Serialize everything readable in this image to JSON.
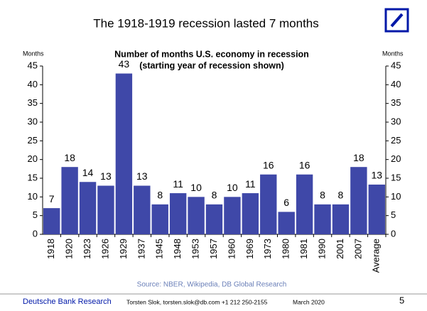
{
  "chart_data": {
    "type": "bar",
    "title": "The 1918-1919 recession lasted 7 months",
    "subtitle": [
      "Number of months U.S. economy in recession",
      "(starting year of recession shown)"
    ],
    "ylabel": "Months",
    "y2label": "Months",
    "categories": [
      "1918",
      "1920",
      "1923",
      "1926",
      "1929",
      "1937",
      "1945",
      "1948",
      "1953",
      "1957",
      "1960",
      "1969",
      "1973",
      "1980",
      "1981",
      "1990",
      "2001",
      "2007",
      "Average"
    ],
    "values": [
      7,
      18,
      14,
      13,
      43,
      13,
      8,
      11,
      10,
      8,
      10,
      11,
      16,
      6,
      16,
      8,
      8,
      18,
      13.3
    ],
    "value_labels": [
      "7",
      "18",
      "14",
      "13",
      "43",
      "13",
      "8",
      "11",
      "10",
      "8",
      "10",
      "11",
      "16",
      "6",
      "16",
      "8",
      "8",
      "18",
      "13"
    ],
    "color": "#3f48a8",
    "ylim": [
      0,
      45
    ],
    "yticks": [
      0,
      5,
      10,
      15,
      20,
      25,
      30,
      35,
      40,
      45
    ],
    "y2lim": [
      0,
      45
    ],
    "y2ticks": [
      0,
      5,
      10,
      15,
      20,
      25,
      30,
      35,
      40,
      45
    ],
    "source": "Source: NBER, Wikipedia, DB Global Research"
  },
  "footer": {
    "company": "Deutsche Bank Research",
    "contact": "Torsten Slok, torsten.slok@db.com  +1 212 250-2155",
    "date": "March 2020",
    "page": "5"
  }
}
